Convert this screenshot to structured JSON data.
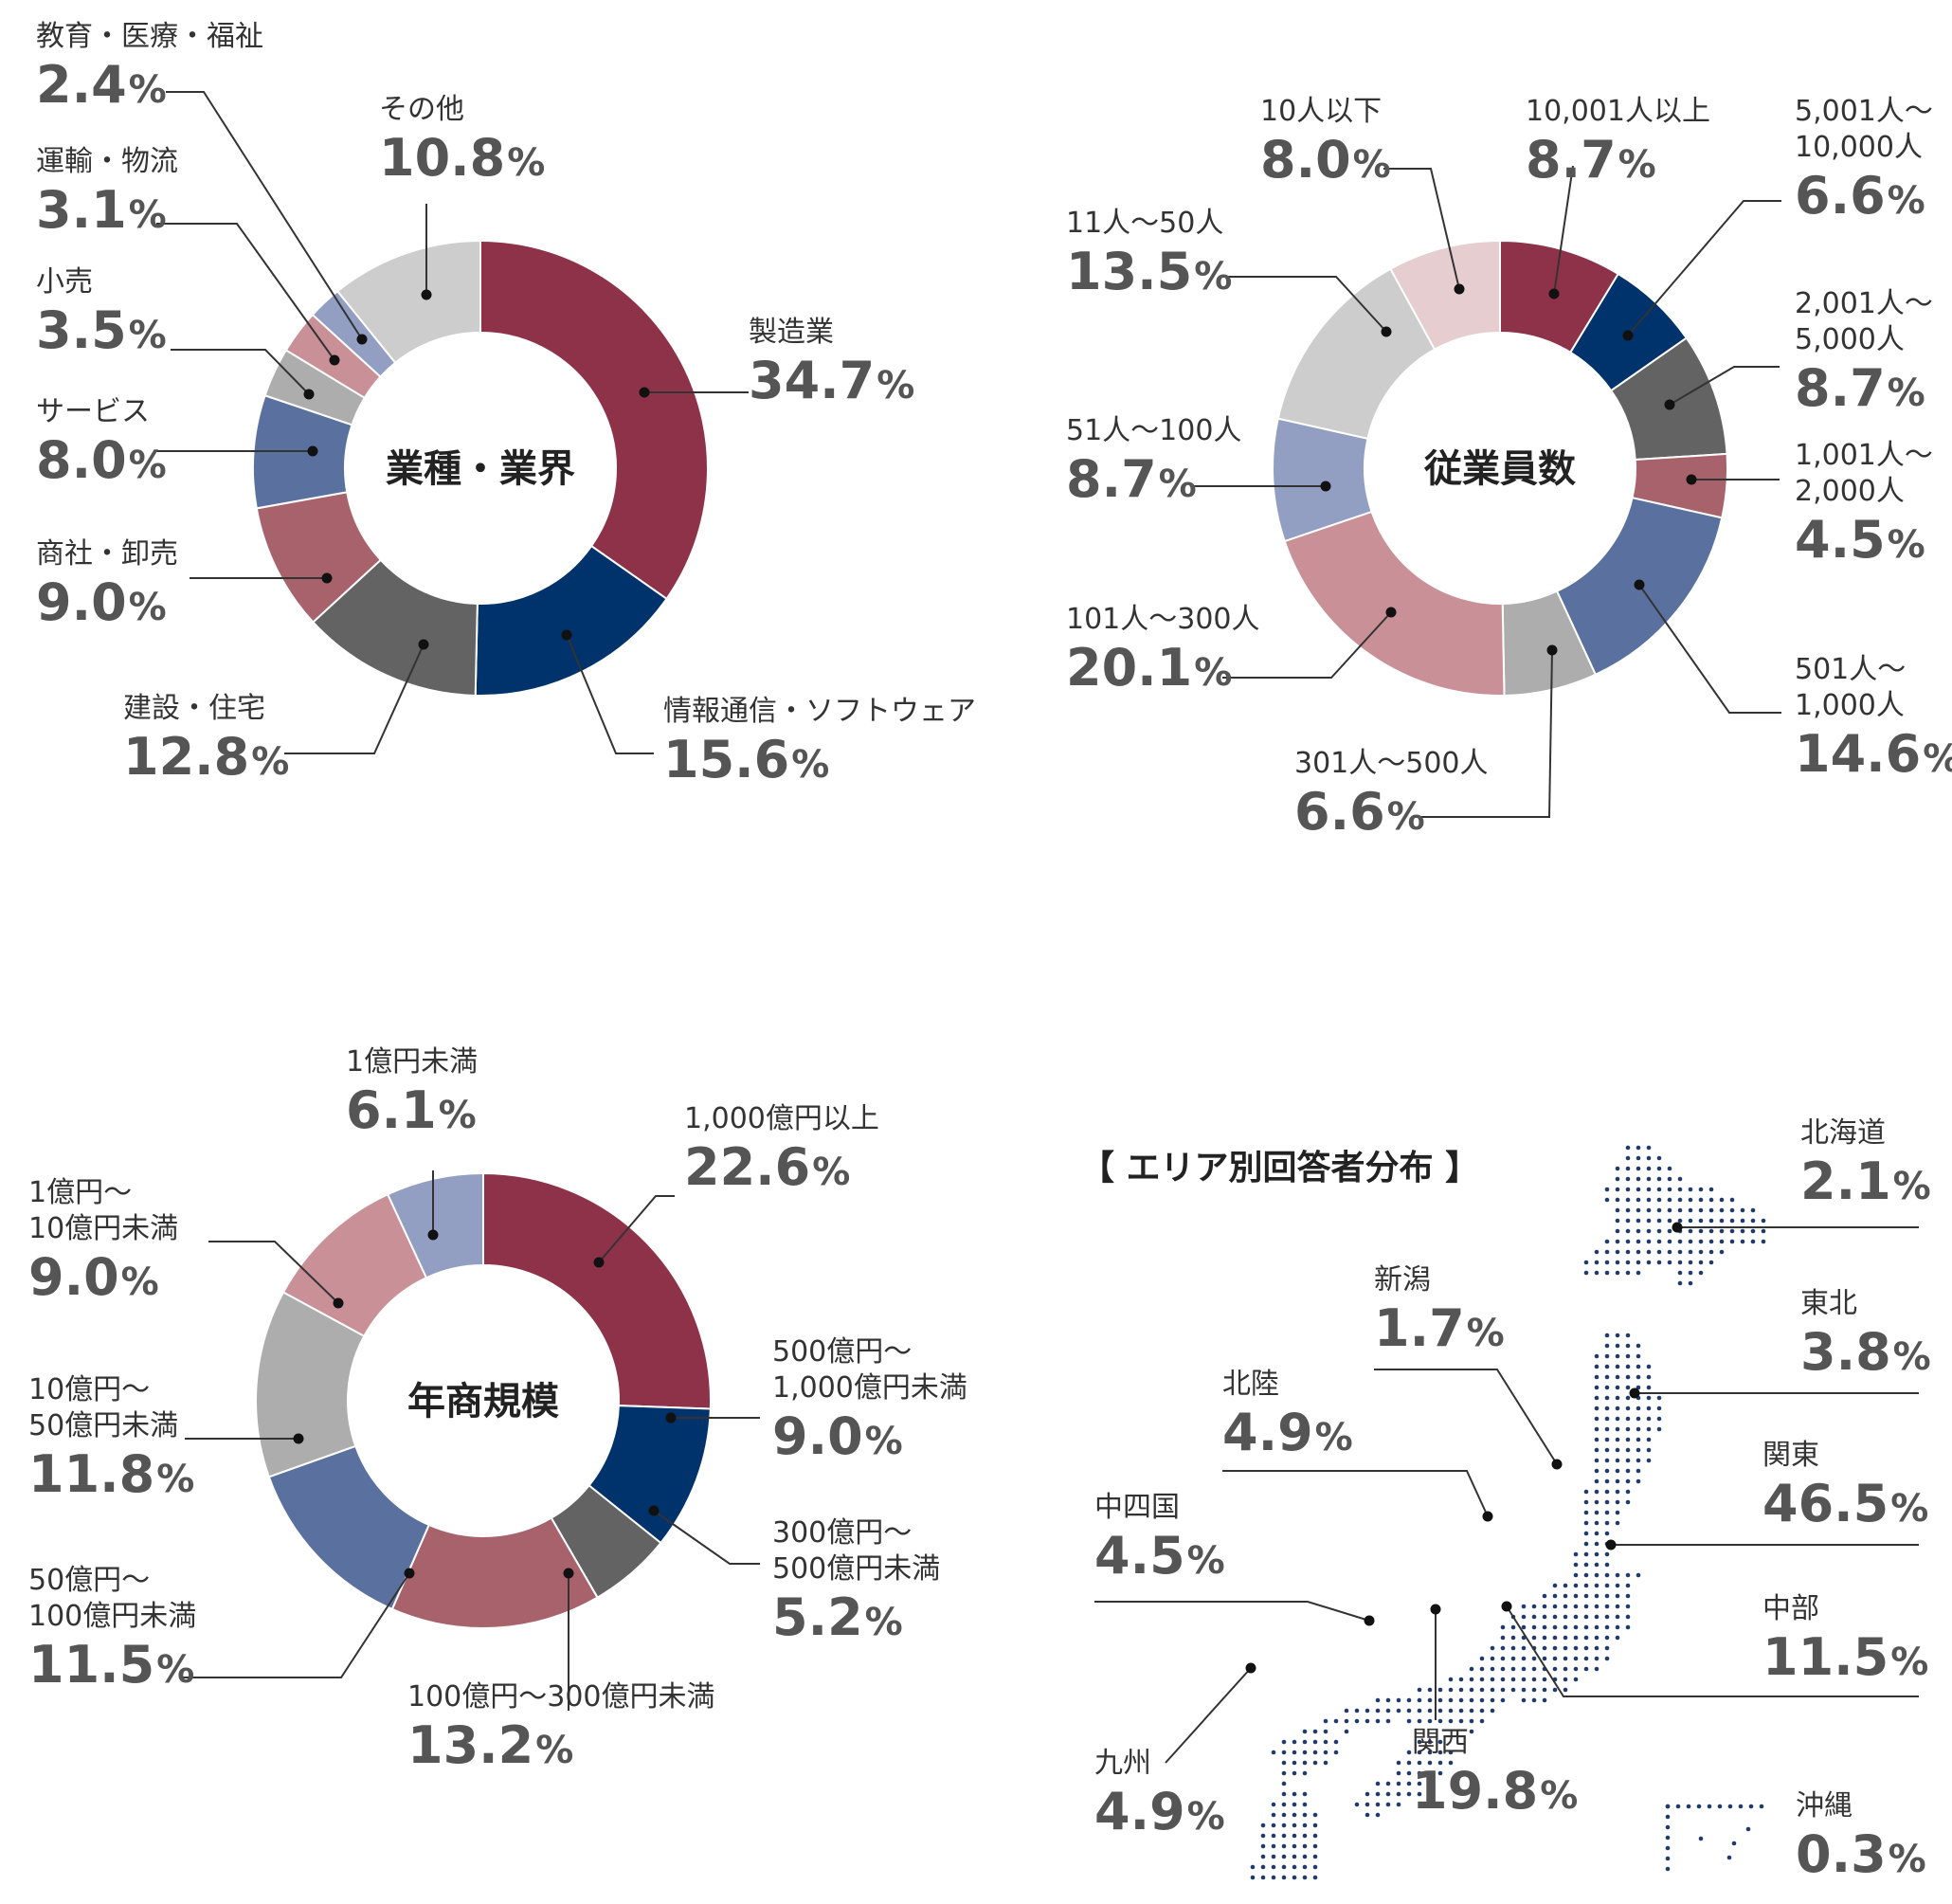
{
  "chart_data": [
    {
      "type": "donut",
      "title": "業種・業界",
      "unit": "%",
      "slices": [
        {
          "label": "製造業",
          "value": 34.7,
          "color": "#8e3249"
        },
        {
          "label": "情報通信・ソフトウェア",
          "value": 15.6,
          "color": "#00326b"
        },
        {
          "label": "建設・住宅",
          "value": 12.8,
          "color": "#636363"
        },
        {
          "label": "商社・卸売",
          "value": 9.0,
          "color": "#a8626c"
        },
        {
          "label": "サービス",
          "value": 8.0,
          "color": "#5a71a0"
        },
        {
          "label": "小売",
          "value": 3.5,
          "color": "#acadac"
        },
        {
          "label": "運輸・物流",
          "value": 3.1,
          "color": "#c99098"
        },
        {
          "label": "教育・医療・福祉",
          "value": 2.4,
          "color": "#929ec2"
        },
        {
          "label": "その他",
          "value": 10.8,
          "color": "#cccdcc"
        }
      ]
    },
    {
      "type": "donut",
      "title": "従業員数",
      "unit": "%",
      "slices": [
        {
          "label": "10,001人以上",
          "value": 8.7,
          "color": "#8e3249"
        },
        {
          "label": "5,001人～\n10,000人",
          "value": 6.6,
          "color": "#00326b"
        },
        {
          "label": "2,001人～\n5,000人",
          "value": 8.7,
          "color": "#636363"
        },
        {
          "label": "1,001人～\n2,000人",
          "value": 4.5,
          "color": "#a8626c"
        },
        {
          "label": "501人～\n1,000人",
          "value": 14.6,
          "color": "#5a71a0"
        },
        {
          "label": "301人～500人",
          "value": 6.6,
          "color": "#acadac"
        },
        {
          "label": "101人～300人",
          "value": 20.1,
          "color": "#c99098"
        },
        {
          "label": "51人～100人",
          "value": 8.7,
          "color": "#929ec2"
        },
        {
          "label": "11人～50人",
          "value": 13.5,
          "color": "#cccdcc"
        },
        {
          "label": "10人以下",
          "value": 8.0,
          "color": "#e6cdd0"
        }
      ]
    },
    {
      "type": "donut",
      "title": "年商規模",
      "unit": "%",
      "slices": [
        {
          "label": "1,000億円以上",
          "value": 22.6,
          "color": "#8e3249"
        },
        {
          "label": "500億円～\n1,000億円未満",
          "value": 9.0,
          "color": "#00326b"
        },
        {
          "label": "300億円～\n500億円未満",
          "value": 5.2,
          "color": "#636363"
        },
        {
          "label": "100億円～300億円未満",
          "value": 13.2,
          "color": "#a8626c"
        },
        {
          "label": "50億円～\n100億円未満",
          "value": 11.5,
          "color": "#5a71a0"
        },
        {
          "label": "10億円～\n50億円未満",
          "value": 11.8,
          "color": "#acadac"
        },
        {
          "label": "1億円～\n10億円未満",
          "value": 9.0,
          "color": "#c99098"
        },
        {
          "label": "1億円未満",
          "value": 6.1,
          "color": "#929ec2"
        }
      ]
    },
    {
      "type": "map",
      "title": "【 エリア別回答者分布 】",
      "unit": "%",
      "regions": [
        {
          "label": "北海道",
          "value": 2.1
        },
        {
          "label": "東北",
          "value": 3.8
        },
        {
          "label": "関東",
          "value": 46.5
        },
        {
          "label": "中部",
          "value": 11.5
        },
        {
          "label": "新潟",
          "value": 1.7
        },
        {
          "label": "北陸",
          "value": 4.9
        },
        {
          "label": "中四国",
          "value": 4.5
        },
        {
          "label": "関西",
          "value": 19.8
        },
        {
          "label": "九州",
          "value": 4.9
        },
        {
          "label": "沖縄",
          "value": 0.3
        }
      ]
    }
  ]
}
